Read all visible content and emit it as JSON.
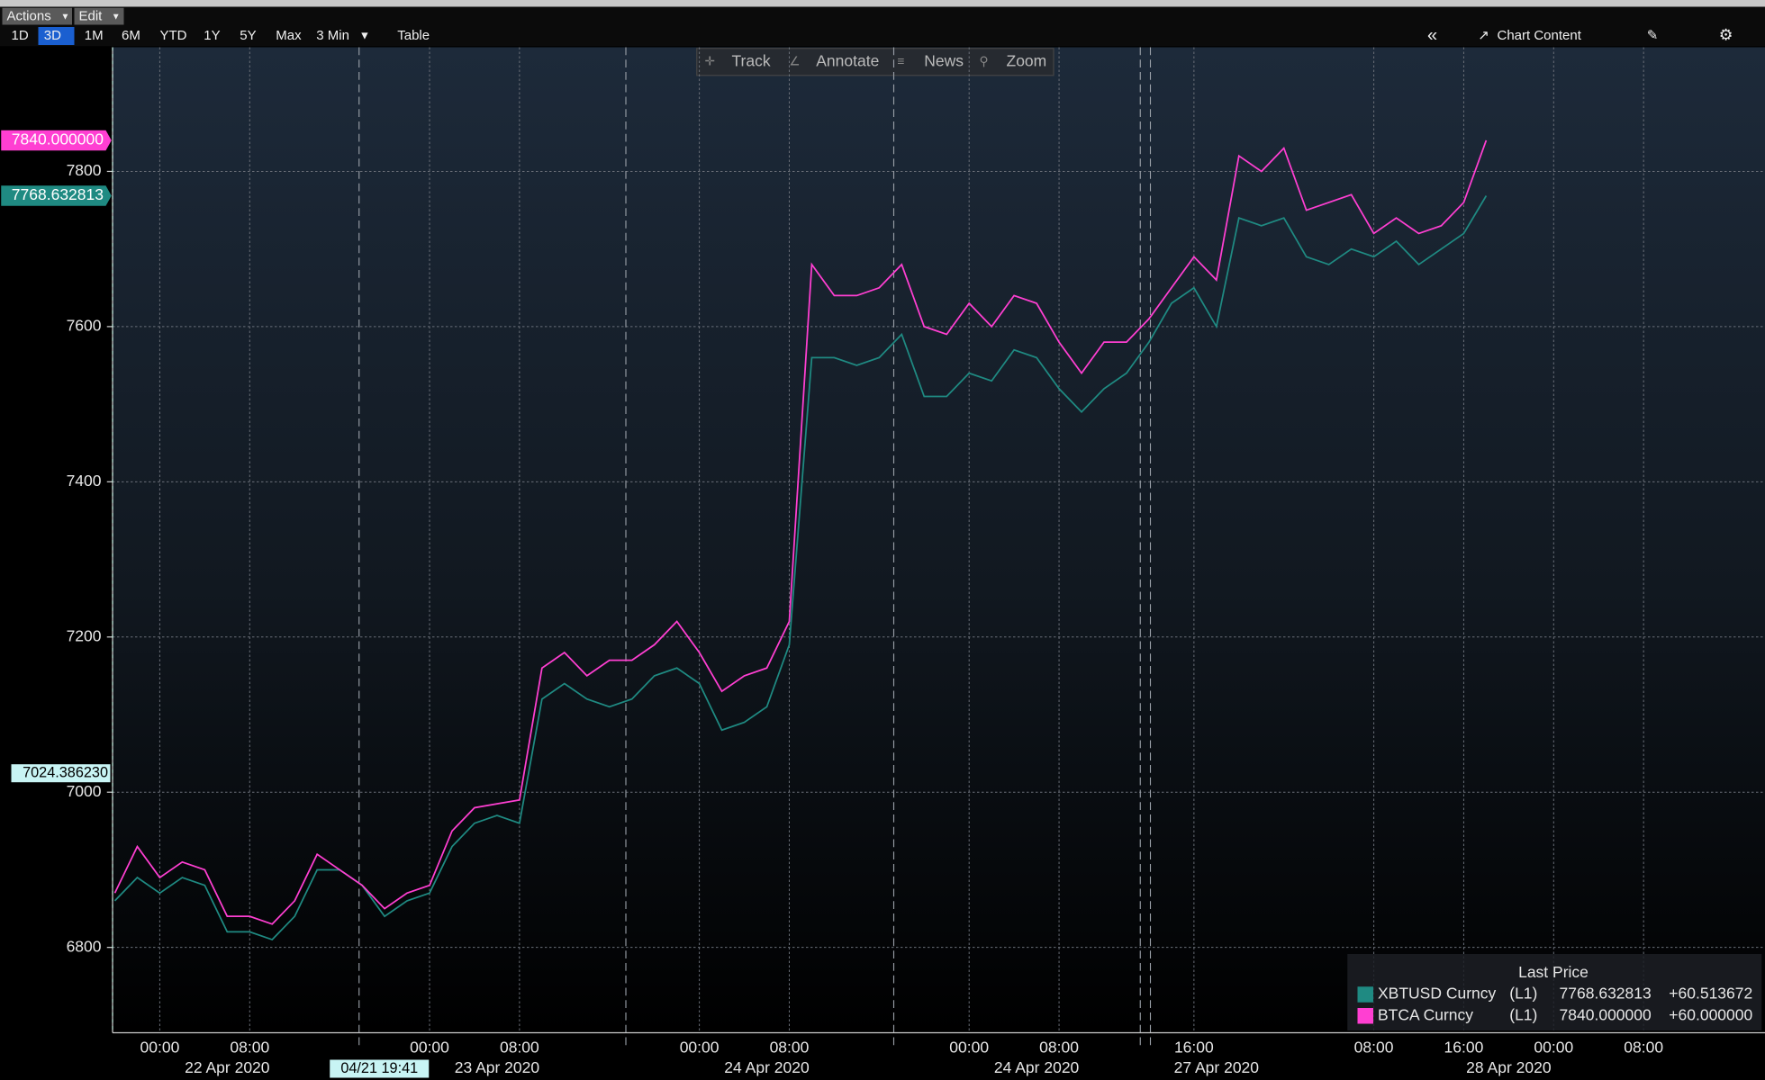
{
  "toolbar": {
    "actions": "Actions",
    "edit": "Edit",
    "ranges": [
      "1D",
      "3D",
      "1M",
      "6M",
      "YTD",
      "1Y",
      "5Y",
      "Max"
    ],
    "selected": "3D",
    "interval": "3 Min",
    "table": "Table",
    "chart_content": "Chart Content",
    "tools": [
      "Track",
      "Annotate",
      "News",
      "Zoom"
    ]
  },
  "chart_data": {
    "type": "line",
    "categories": [
      null,
      null,
      "00:00",
      null,
      null,
      null,
      "08:00",
      null,
      null,
      null,
      null,
      null,
      null,
      null,
      "00:00",
      null,
      null,
      null,
      "08:00",
      null,
      null,
      null,
      null,
      null,
      null,
      null,
      "00:00",
      null,
      null,
      null,
      "08:00",
      null,
      null,
      null,
      null,
      null,
      null,
      null,
      "00:00",
      null,
      null,
      null,
      "08:00",
      null,
      null,
      null,
      null,
      null,
      "16:00",
      null,
      null,
      null,
      null,
      null,
      null,
      null,
      "08:00",
      null,
      null,
      null,
      "16:00",
      null,
      null,
      null,
      "00:00",
      null,
      null,
      null,
      "08:00",
      null,
      null,
      null,
      null,
      null
    ],
    "dates": [
      null,
      null,
      null,
      null,
      null,
      "22 Apr 2020",
      null,
      null,
      null,
      null,
      null,
      null,
      null,
      null,
      null,
      null,
      null,
      "23 Apr 2020",
      null,
      null,
      null,
      null,
      null,
      null,
      null,
      null,
      null,
      null,
      null,
      "24 Apr 2020",
      null,
      null,
      null,
      null,
      null,
      null,
      null,
      null,
      null,
      null,
      null,
      "24 Apr 2020",
      null,
      null,
      null,
      null,
      null,
      null,
      null,
      "27 Apr 2020",
      null,
      null,
      null,
      null,
      null,
      null,
      null,
      null,
      null,
      null,
      null,
      null,
      "28 Apr 2020",
      null,
      null,
      null,
      null,
      null,
      null,
      null,
      null,
      null,
      null,
      null
    ],
    "series": [
      {
        "name": "XBTUSD Curncy",
        "source": "(L1)",
        "color": "#1f8a82",
        "last_label": "7768.632813",
        "change": "+60.513672",
        "values": [
          6860,
          6890,
          6870,
          6890,
          6880,
          6820,
          6820,
          6810,
          6840,
          6900,
          6900,
          6880,
          6840,
          6860,
          6870,
          6930,
          6960,
          6970,
          6960,
          7120,
          7140,
          7120,
          7110,
          7120,
          7150,
          7160,
          7140,
          7080,
          7090,
          7110,
          7190,
          7560,
          7560,
          7550,
          7560,
          7590,
          7510,
          7510,
          7540,
          7530,
          7570,
          7560,
          7520,
          7490,
          7520,
          7540,
          7580,
          7630,
          7650,
          7600,
          7740,
          7730,
          7740,
          7690,
          7680,
          7700,
          7690,
          7710,
          7680,
          7700,
          7720,
          7768.632813,
          null,
          null,
          null,
          null,
          null,
          null,
          null,
          null,
          null,
          null,
          null,
          null
        ]
      },
      {
        "name": "BTCA Curncy",
        "source": "(L1)",
        "color": "#ff3fd2",
        "last_label": "7840.000000",
        "change": "+60.000000",
        "values": [
          6870,
          6930,
          6890,
          6910,
          6900,
          6840,
          6840,
          6830,
          6860,
          6920,
          6900,
          6880,
          6850,
          6870,
          6880,
          6950,
          6980,
          6985,
          6990,
          7160,
          7180,
          7150,
          7170,
          7170,
          7190,
          7220,
          7180,
          7130,
          7150,
          7160,
          7220,
          7680,
          7640,
          7640,
          7650,
          7680,
          7600,
          7590,
          7630,
          7600,
          7640,
          7630,
          7580,
          7540,
          7580,
          7580,
          7610,
          7650,
          7690,
          7660,
          7820,
          7800,
          7830,
          7750,
          7760,
          7770,
          7720,
          7740,
          7720,
          7730,
          7760,
          7840,
          null,
          null,
          null,
          null,
          null,
          null,
          null,
          null,
          null,
          null,
          null,
          null
        ]
      }
    ],
    "ylim": [
      6690,
      7960
    ],
    "yticks": [
      6800,
      7000,
      7200,
      7400,
      7600,
      7800
    ],
    "grid": true,
    "legend_title": "Last Price",
    "crosshair": {
      "y": 7024.38623,
      "y_label": "7024.386230",
      "x_label": "04/21 19:41"
    }
  }
}
